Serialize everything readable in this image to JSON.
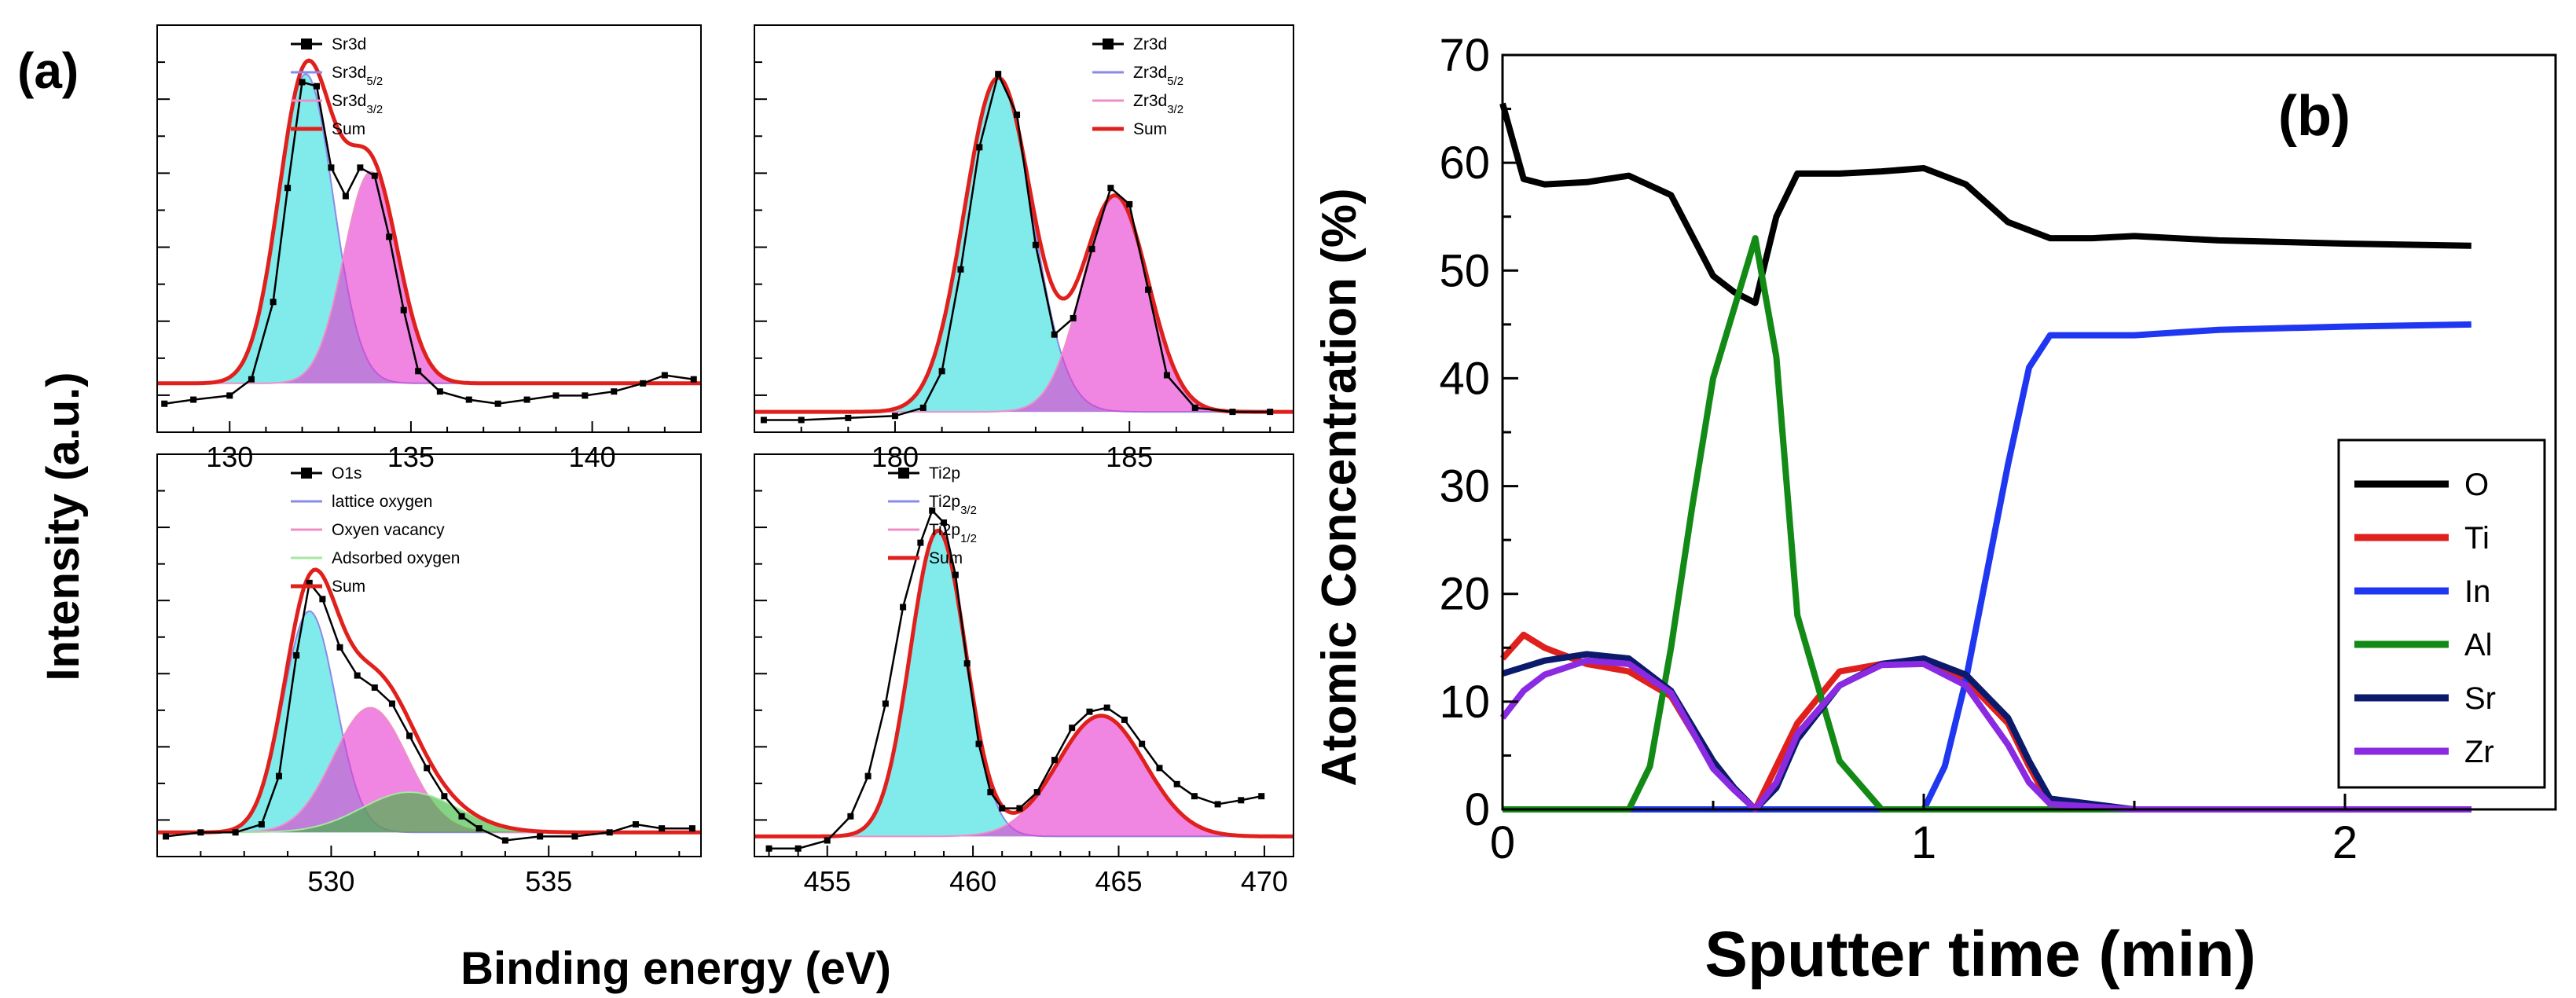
{
  "figure": {
    "panel_a": {
      "label": "(a)",
      "ylabel": "Intensity (a.u.)",
      "xlabel": "Binding energy (eV)"
    },
    "panel_b": {
      "label": "(b)"
    }
  },
  "colors": {
    "sum": "#e0201c",
    "component1_fill": "#33ddde",
    "component2_fill": "#e63ad1",
    "component3_fill": "#3ab838",
    "component1_line": "#8a8ae8",
    "component2_line": "#ef8ec6",
    "component3_line": "#a8e6a2"
  },
  "chart_data": [
    {
      "type": "line",
      "title": "Sr3d",
      "xlim": [
        128,
        143
      ],
      "ylim": [
        0,
        1.0
      ],
      "xticks": [
        130,
        135,
        140
      ],
      "legend": [
        "Sr3d",
        "Sr3d5/2",
        "Sr3d3/2",
        "Sum"
      ],
      "legend_html": [
        "Sr3d",
        "Sr3d<tspan baseline-shift='sub' font-size='15'>5/2</tspan>",
        "Sr3d<tspan baseline-shift='sub' font-size='15'>3/2</tspan>",
        "Sum"
      ],
      "baseline": 0.12,
      "peaks": [
        {
          "name": "Sr3d5/2",
          "center": 132.1,
          "amplitude": 0.76,
          "sigma": 0.75
        },
        {
          "name": "Sr3d3/2",
          "center": 133.9,
          "amplitude": 0.52,
          "sigma": 0.75
        }
      ],
      "data": [
        [
          128.2,
          0.07
        ],
        [
          129.0,
          0.08
        ],
        [
          130.0,
          0.09
        ],
        [
          130.6,
          0.13
        ],
        [
          131.2,
          0.32
        ],
        [
          131.6,
          0.6
        ],
        [
          132.0,
          0.86
        ],
        [
          132.4,
          0.85
        ],
        [
          132.8,
          0.65
        ],
        [
          133.2,
          0.58
        ],
        [
          133.6,
          0.65
        ],
        [
          134.0,
          0.63
        ],
        [
          134.4,
          0.48
        ],
        [
          134.8,
          0.3
        ],
        [
          135.2,
          0.15
        ],
        [
          135.8,
          0.1
        ],
        [
          136.6,
          0.08
        ],
        [
          137.4,
          0.07
        ],
        [
          138.2,
          0.08
        ],
        [
          139.0,
          0.09
        ],
        [
          139.8,
          0.09
        ],
        [
          140.6,
          0.1
        ],
        [
          141.4,
          0.12
        ],
        [
          142.0,
          0.14
        ],
        [
          142.8,
          0.13
        ]
      ]
    },
    {
      "type": "line",
      "title": "Zr3d",
      "xlim": [
        177,
        188.5
      ],
      "ylim": [
        0,
        1.0
      ],
      "xticks": [
        180,
        185
      ],
      "legend": [
        "Zr3d",
        "Zr3d5/2",
        "Zr3d3/2",
        "Sum"
      ],
      "legend_html": [
        "Zr3d",
        "Zr3d<tspan baseline-shift='sub' font-size='15'>5/2</tspan>",
        "Zr3d<tspan baseline-shift='sub' font-size='15'>3/2</tspan>",
        "Sum"
      ],
      "baseline": 0.05,
      "peaks": [
        {
          "name": "Zr3d5/2",
          "center": 182.2,
          "amplitude": 0.82,
          "sigma": 0.72
        },
        {
          "name": "Zr3d3/2",
          "center": 184.7,
          "amplitude": 0.53,
          "sigma": 0.7
        }
      ],
      "data": [
        [
          177.2,
          0.03
        ],
        [
          178.0,
          0.03
        ],
        [
          179.0,
          0.035
        ],
        [
          180.0,
          0.04
        ],
        [
          180.6,
          0.06
        ],
        [
          181.0,
          0.15
        ],
        [
          181.4,
          0.4
        ],
        [
          181.8,
          0.7
        ],
        [
          182.2,
          0.88
        ],
        [
          182.6,
          0.78
        ],
        [
          183.0,
          0.46
        ],
        [
          183.4,
          0.24
        ],
        [
          183.8,
          0.28
        ],
        [
          184.2,
          0.45
        ],
        [
          184.6,
          0.6
        ],
        [
          185.0,
          0.56
        ],
        [
          185.4,
          0.35
        ],
        [
          185.8,
          0.14
        ],
        [
          186.4,
          0.06
        ],
        [
          187.2,
          0.05
        ],
        [
          188.0,
          0.05
        ]
      ]
    },
    {
      "type": "line",
      "title": "O1s",
      "xlim": [
        526,
        538.5
      ],
      "ylim": [
        0,
        1.0
      ],
      "xticks": [
        530,
        535
      ],
      "legend": [
        "O1s",
        "lattice oxygen",
        "Oxyen vacancy",
        "Adsorbed oxygen",
        "Sum"
      ],
      "legend_html": [
        "O1s",
        "lattice oxygen",
        "Oxyen vacancy",
        "Adsorbed oxygen",
        "Sum"
      ],
      "baseline": 0.06,
      "peaks": [
        {
          "name": "lattice oxygen",
          "center": 529.5,
          "amplitude": 0.55,
          "sigma": 0.6
        },
        {
          "name": "Oxyen vacancy",
          "center": 530.9,
          "amplitude": 0.31,
          "sigma": 0.85
        },
        {
          "name": "Adsorbed oxygen",
          "center": 531.8,
          "amplitude": 0.1,
          "sigma": 1.1
        }
      ],
      "data": [
        [
          526.2,
          0.05
        ],
        [
          527.0,
          0.06
        ],
        [
          527.8,
          0.06
        ],
        [
          528.4,
          0.08
        ],
        [
          528.8,
          0.2
        ],
        [
          529.2,
          0.5
        ],
        [
          529.5,
          0.68
        ],
        [
          529.8,
          0.64
        ],
        [
          530.2,
          0.52
        ],
        [
          530.6,
          0.45
        ],
        [
          531.0,
          0.42
        ],
        [
          531.4,
          0.38
        ],
        [
          531.8,
          0.3
        ],
        [
          532.2,
          0.22
        ],
        [
          532.6,
          0.15
        ],
        [
          533.0,
          0.1
        ],
        [
          533.4,
          0.07
        ],
        [
          534.0,
          0.04
        ],
        [
          534.8,
          0.05
        ],
        [
          535.6,
          0.05
        ],
        [
          536.4,
          0.06
        ],
        [
          537.0,
          0.08
        ],
        [
          537.6,
          0.07
        ],
        [
          538.3,
          0.07
        ]
      ]
    },
    {
      "type": "line",
      "title": "Ti2p",
      "xlim": [
        452.5,
        471
      ],
      "ylim": [
        0,
        1.0
      ],
      "xticks": [
        455,
        460,
        465,
        470
      ],
      "legend": [
        "Ti2p",
        "Ti2p3/2",
        "Ti2p1/2",
        "Sum"
      ],
      "legend_html": [
        "Ti2p",
        "Ti2p<tspan baseline-shift='sub' font-size='15'>3/2</tspan>",
        "Ti2p<tspan baseline-shift='sub' font-size='15'>1/2</tspan>",
        "Sum"
      ],
      "baseline": 0.05,
      "peaks": [
        {
          "name": "Ti2p3/2",
          "center": 458.8,
          "amplitude": 0.76,
          "sigma": 0.95
        },
        {
          "name": "Ti2p1/2",
          "center": 464.4,
          "amplitude": 0.3,
          "sigma": 1.5
        }
      ],
      "data": [
        [
          453.0,
          0.02
        ],
        [
          454.0,
          0.02
        ],
        [
          455.0,
          0.04
        ],
        [
          455.8,
          0.1
        ],
        [
          456.4,
          0.2
        ],
        [
          457.0,
          0.38
        ],
        [
          457.6,
          0.62
        ],
        [
          458.2,
          0.78
        ],
        [
          458.6,
          0.86
        ],
        [
          459.0,
          0.83
        ],
        [
          459.4,
          0.7
        ],
        [
          459.8,
          0.48
        ],
        [
          460.2,
          0.28
        ],
        [
          460.6,
          0.16
        ],
        [
          461.0,
          0.12
        ],
        [
          461.6,
          0.12
        ],
        [
          462.2,
          0.16
        ],
        [
          462.8,
          0.24
        ],
        [
          463.4,
          0.32
        ],
        [
          464.0,
          0.36
        ],
        [
          464.6,
          0.37
        ],
        [
          465.2,
          0.34
        ],
        [
          465.8,
          0.28
        ],
        [
          466.4,
          0.22
        ],
        [
          467.0,
          0.18
        ],
        [
          467.6,
          0.15
        ],
        [
          468.4,
          0.13
        ],
        [
          469.2,
          0.14
        ],
        [
          469.9,
          0.15
        ]
      ]
    },
    {
      "type": "line",
      "title": "",
      "xlabel": "Sputter time (min)",
      "ylabel": "Atomic Concentration (%)",
      "xlim": [
        0,
        2.5
      ],
      "ylim": [
        0,
        70
      ],
      "xticks": [
        0,
        1,
        2
      ],
      "yticks": [
        0,
        10,
        20,
        30,
        40,
        50,
        60,
        70
      ],
      "legend_position": "lower-right",
      "series": [
        {
          "name": "O",
          "color": "#000000",
          "x": [
            0,
            0.05,
            0.1,
            0.2,
            0.3,
            0.4,
            0.5,
            0.55,
            0.6,
            0.65,
            0.7,
            0.8,
            0.9,
            1.0,
            1.1,
            1.2,
            1.3,
            1.4,
            1.5,
            1.7,
            2.0,
            2.3
          ],
          "y": [
            65.5,
            58.5,
            58,
            58.2,
            58.8,
            57,
            49.5,
            48,
            47,
            55,
            59,
            59,
            59.2,
            59.5,
            58,
            54.5,
            53,
            53,
            53.2,
            52.8,
            52.5,
            52.3
          ]
        },
        {
          "name": "Ti",
          "color": "#e0201c",
          "x": [
            0,
            0.05,
            0.1,
            0.2,
            0.3,
            0.4,
            0.5,
            0.6,
            0.7,
            0.8,
            0.9,
            1.0,
            1.1,
            1.2,
            1.25,
            1.3,
            1.5,
            2.0,
            2.3
          ],
          "y": [
            14,
            16.2,
            15,
            13.5,
            12.8,
            10.5,
            4,
            0,
            8,
            12.8,
            13.5,
            13.8,
            12,
            8,
            4,
            0.5,
            0,
            0,
            0
          ]
        },
        {
          "name": "In",
          "color": "#1f37f0",
          "x": [
            0,
            0.5,
            0.9,
            1.0,
            1.05,
            1.1,
            1.15,
            1.2,
            1.25,
            1.3,
            1.5,
            1.7,
            2.0,
            2.3
          ],
          "y": [
            0,
            0,
            0,
            0,
            4,
            12,
            22,
            32,
            41,
            44,
            44,
            44.5,
            44.8,
            45
          ]
        },
        {
          "name": "Al",
          "color": "#138a16",
          "x": [
            0,
            0.2,
            0.3,
            0.35,
            0.4,
            0.45,
            0.5,
            0.55,
            0.6,
            0.65,
            0.7,
            0.8,
            0.9,
            1.0,
            1.5,
            2.3
          ],
          "y": [
            0,
            0,
            0,
            4,
            15,
            28,
            40,
            46.5,
            53,
            42,
            18,
            4.5,
            0,
            0,
            0,
            0
          ]
        },
        {
          "name": "Sr",
          "color": "#0b1a6b",
          "x": [
            0,
            0.1,
            0.2,
            0.3,
            0.4,
            0.5,
            0.55,
            0.6,
            0.65,
            0.7,
            0.8,
            0.9,
            1.0,
            1.1,
            1.2,
            1.25,
            1.3,
            1.5,
            2.0,
            2.3
          ],
          "y": [
            12.6,
            13.8,
            14.4,
            14,
            11,
            4.5,
            2,
            0,
            2,
            6.5,
            11.5,
            13.5,
            14,
            12.5,
            8.5,
            4.5,
            1,
            0,
            0,
            0
          ]
        },
        {
          "name": "Zr",
          "color": "#8a2be2",
          "x": [
            0,
            0.05,
            0.1,
            0.2,
            0.3,
            0.4,
            0.5,
            0.55,
            0.6,
            0.65,
            0.7,
            0.8,
            0.9,
            1.0,
            1.1,
            1.2,
            1.25,
            1.3,
            1.5,
            2.0,
            2.3
          ],
          "y": [
            8.5,
            11,
            12.5,
            13.8,
            13.5,
            10.8,
            3.8,
            1.8,
            0,
            2.5,
            7,
            11.5,
            13.4,
            13.5,
            11.5,
            6,
            2.5,
            0.5,
            0,
            0,
            0
          ]
        }
      ]
    }
  ]
}
